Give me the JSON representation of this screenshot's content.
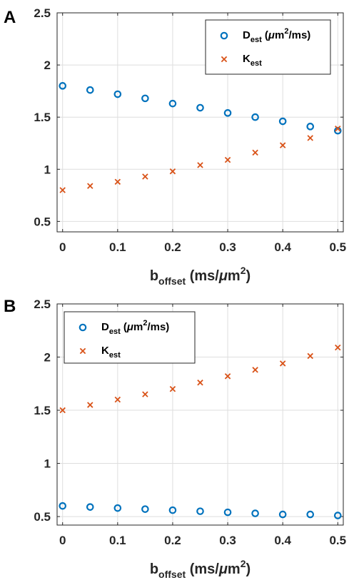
{
  "panels": [
    {
      "panel_label": "A",
      "xlabel": {
        "main": "b",
        "sub": "offset",
        "unit": " (ms/",
        "mu": "μ",
        "m": "m",
        "sup": "2",
        "close": ")"
      },
      "legend": [
        {
          "main": "D",
          "sub": "est",
          "rest": " (",
          "mu": "μ",
          "m": "m",
          "sup": "2",
          "tail": "/ms)"
        },
        {
          "main": "K",
          "sub": "est",
          "rest": "",
          "mu": "",
          "m": "",
          "sup": "",
          "tail": ""
        }
      ]
    },
    {
      "panel_label": "B",
      "xlabel": {
        "main": "b",
        "sub": "offset",
        "unit": " (ms/",
        "mu": "μ",
        "m": "m",
        "sup": "2",
        "close": ")"
      },
      "legend": [
        {
          "main": "D",
          "sub": "est",
          "rest": " (",
          "mu": "μ",
          "m": "m",
          "sup": "2",
          "tail": "/ms)"
        },
        {
          "main": "K",
          "sub": "est",
          "rest": "",
          "mu": "",
          "m": "",
          "sup": "",
          "tail": ""
        }
      ]
    }
  ],
  "chart_data": [
    {
      "type": "scatter",
      "panel": "A",
      "title": "",
      "xlabel": "b_offset (ms/μm^2)",
      "ylabel": "",
      "xlim": [
        -0.01,
        0.51
      ],
      "ylim": [
        0.4,
        2.5
      ],
      "xticks": [
        0,
        0.1,
        0.2,
        0.3,
        0.4,
        0.5
      ],
      "xtick_labels": [
        "0",
        "0.1",
        "0.2",
        "0.3",
        "0.4",
        "0.5"
      ],
      "yticks": [
        0.5,
        1,
        1.5,
        2,
        2.5
      ],
      "ytick_labels": [
        "0.5",
        "1",
        "1.5",
        "2",
        "2.5"
      ],
      "grid": true,
      "legend_position": "top-right",
      "x": [
        0,
        0.05,
        0.1,
        0.15,
        0.2,
        0.25,
        0.3,
        0.35,
        0.4,
        0.45,
        0.5
      ],
      "series": [
        {
          "name": "D_est (μm^2/ms)",
          "marker": "circle",
          "color": "#0072BD",
          "values": [
            1.8,
            1.76,
            1.72,
            1.68,
            1.63,
            1.59,
            1.54,
            1.5,
            1.46,
            1.41,
            1.37
          ]
        },
        {
          "name": "K_est",
          "marker": "x",
          "color": "#D95319",
          "values": [
            0.8,
            0.84,
            0.88,
            0.93,
            0.98,
            1.04,
            1.09,
            1.16,
            1.23,
            1.3,
            1.39
          ]
        }
      ]
    },
    {
      "type": "scatter",
      "panel": "B",
      "title": "",
      "xlabel": "b_offset (ms/μm^2)",
      "ylabel": "",
      "xlim": [
        -0.01,
        0.51
      ],
      "ylim": [
        0.42,
        2.5
      ],
      "xticks": [
        0,
        0.1,
        0.2,
        0.3,
        0.4,
        0.5
      ],
      "xtick_labels": [
        "0",
        "0.1",
        "0.2",
        "0.3",
        "0.4",
        "0.5"
      ],
      "yticks": [
        0.5,
        1,
        1.5,
        2,
        2.5
      ],
      "ytick_labels": [
        "0.5",
        "1",
        "1.5",
        "2",
        "2.5"
      ],
      "grid": true,
      "legend_position": "top-left",
      "x": [
        0,
        0.05,
        0.1,
        0.15,
        0.2,
        0.25,
        0.3,
        0.35,
        0.4,
        0.45,
        0.5
      ],
      "series": [
        {
          "name": "D_est (μm^2/ms)",
          "marker": "circle",
          "color": "#0072BD",
          "values": [
            0.6,
            0.59,
            0.58,
            0.57,
            0.56,
            0.55,
            0.54,
            0.53,
            0.52,
            0.52,
            0.51
          ]
        },
        {
          "name": "K_est",
          "marker": "x",
          "color": "#D95319",
          "values": [
            1.5,
            1.55,
            1.6,
            1.65,
            1.7,
            1.76,
            1.82,
            1.88,
            1.94,
            2.01,
            2.09
          ]
        }
      ]
    }
  ]
}
